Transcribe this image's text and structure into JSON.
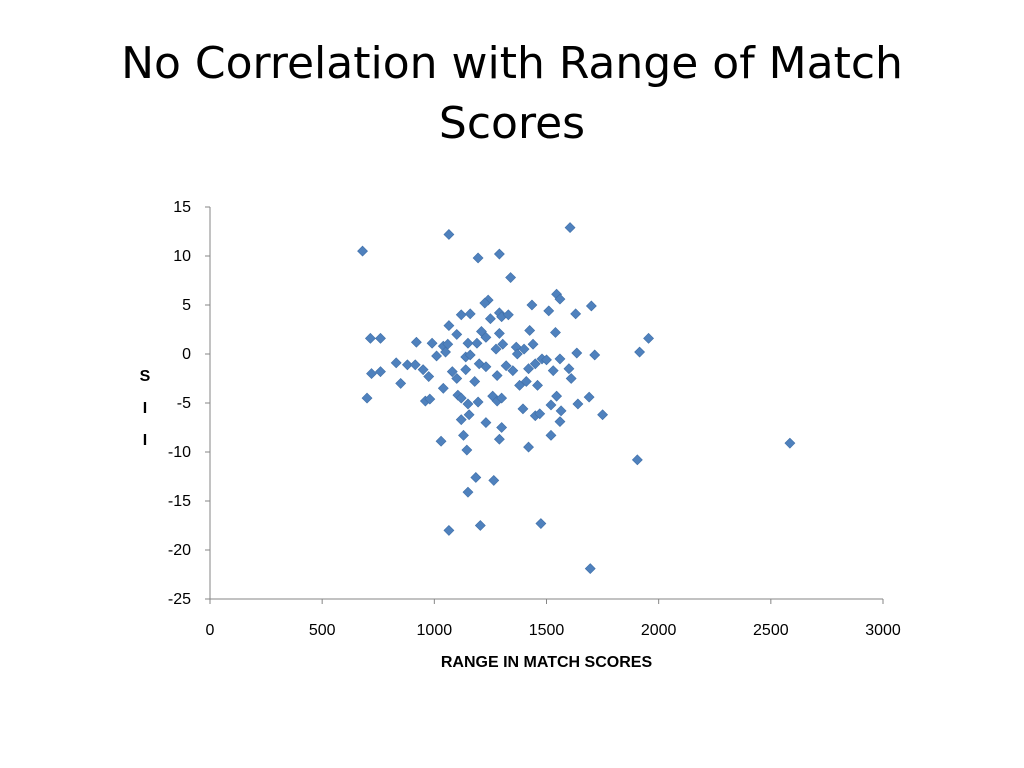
{
  "slide": {
    "title": "No Correlation with Range of Match Scores"
  },
  "chart_data": {
    "type": "scatter",
    "title": "No Correlation with Range of Match Scores",
    "xlabel": "RANGE IN MATCH SCORES",
    "ylabel": "SII",
    "xlim": [
      0,
      3000
    ],
    "ylim": [
      -25,
      15
    ],
    "xticks": [
      0,
      500,
      1000,
      1500,
      2000,
      2500,
      3000
    ],
    "yticks": [
      15,
      10,
      5,
      0,
      -5,
      -10,
      -15,
      -20,
      -25
    ],
    "grid": false,
    "legend": "none",
    "marker": "diamond",
    "color": "#4f81bd",
    "series": [
      {
        "points": [
          [
            680,
            10.5
          ],
          [
            1065,
            12.2
          ],
          [
            1195,
            9.8
          ],
          [
            1290,
            10.2
          ],
          [
            1605,
            12.9
          ],
          [
            1340,
            7.8
          ],
          [
            1240,
            5.5
          ],
          [
            1225,
            5.2
          ],
          [
            1250,
            3.6
          ],
          [
            1290,
            4.2
          ],
          [
            1300,
            3.8
          ],
          [
            1330,
            4.0
          ],
          [
            1435,
            5.0
          ],
          [
            1510,
            4.4
          ],
          [
            1545,
            6.1
          ],
          [
            1560,
            5.6
          ],
          [
            1630,
            4.1
          ],
          [
            1700,
            4.9
          ],
          [
            1120,
            4.0
          ],
          [
            1160,
            4.1
          ],
          [
            1065,
            2.9
          ],
          [
            1100,
            2.0
          ],
          [
            1230,
            1.7
          ],
          [
            1290,
            2.1
          ],
          [
            1425,
            2.4
          ],
          [
            1540,
            2.2
          ],
          [
            715,
            1.6
          ],
          [
            760,
            1.6
          ],
          [
            920,
            1.2
          ],
          [
            990,
            1.1
          ],
          [
            1040,
            0.8
          ],
          [
            1060,
            1.0
          ],
          [
            1150,
            1.1
          ],
          [
            1190,
            1.1
          ],
          [
            1210,
            2.3
          ],
          [
            1275,
            0.5
          ],
          [
            1305,
            1.0
          ],
          [
            1365,
            0.7
          ],
          [
            1400,
            0.5
          ],
          [
            1440,
            1.0
          ],
          [
            1370,
            0.0
          ],
          [
            1480,
            -0.5
          ],
          [
            1500,
            -0.6
          ],
          [
            1560,
            -0.5
          ],
          [
            1635,
            0.1
          ],
          [
            1715,
            -0.1
          ],
          [
            1915,
            0.2
          ],
          [
            1955,
            1.6
          ],
          [
            1010,
            -0.2
          ],
          [
            1050,
            0.2
          ],
          [
            1140,
            -0.3
          ],
          [
            1160,
            -0.1
          ],
          [
            1200,
            -1.0
          ],
          [
            1230,
            -1.3
          ],
          [
            1320,
            -1.2
          ],
          [
            1350,
            -1.7
          ],
          [
            1420,
            -1.5
          ],
          [
            1450,
            -1.0
          ],
          [
            1530,
            -1.7
          ],
          [
            1600,
            -1.5
          ],
          [
            830,
            -0.9
          ],
          [
            880,
            -1.1
          ],
          [
            915,
            -1.1
          ],
          [
            950,
            -1.6
          ],
          [
            975,
            -2.3
          ],
          [
            1080,
            -1.8
          ],
          [
            1100,
            -2.5
          ],
          [
            1140,
            -1.6
          ],
          [
            1180,
            -2.8
          ],
          [
            1280,
            -2.2
          ],
          [
            1380,
            -3.2
          ],
          [
            1410,
            -2.8
          ],
          [
            1460,
            -3.2
          ],
          [
            1610,
            -2.5
          ],
          [
            720,
            -2.0
          ],
          [
            760,
            -1.8
          ],
          [
            850,
            -3.0
          ],
          [
            1040,
            -3.5
          ],
          [
            1105,
            -4.2
          ],
          [
            1120,
            -4.5
          ],
          [
            1195,
            -4.9
          ],
          [
            1260,
            -4.3
          ],
          [
            1280,
            -4.8
          ],
          [
            1300,
            -4.5
          ],
          [
            1395,
            -5.6
          ],
          [
            1450,
            -6.3
          ],
          [
            1470,
            -6.1
          ],
          [
            1520,
            -5.2
          ],
          [
            1545,
            -4.3
          ],
          [
            1565,
            -5.8
          ],
          [
            1640,
            -5.1
          ],
          [
            1690,
            -4.4
          ],
          [
            1750,
            -6.2
          ],
          [
            700,
            -4.5
          ],
          [
            960,
            -4.8
          ],
          [
            980,
            -4.6
          ],
          [
            1150,
            -5.1
          ],
          [
            1155,
            -6.2
          ],
          [
            1120,
            -6.7
          ],
          [
            1230,
            -7.0
          ],
          [
            1300,
            -7.5
          ],
          [
            1560,
            -6.9
          ],
          [
            1030,
            -8.9
          ],
          [
            1130,
            -8.3
          ],
          [
            1290,
            -8.7
          ],
          [
            1420,
            -9.5
          ],
          [
            1520,
            -8.3
          ],
          [
            1145,
            -9.8
          ],
          [
            1905,
            -10.8
          ],
          [
            2585,
            -9.1
          ],
          [
            1185,
            -12.6
          ],
          [
            1265,
            -12.9
          ],
          [
            1150,
            -14.1
          ],
          [
            1065,
            -18.0
          ],
          [
            1205,
            -17.5
          ],
          [
            1475,
            -17.3
          ],
          [
            1695,
            -21.9
          ]
        ]
      }
    ]
  }
}
